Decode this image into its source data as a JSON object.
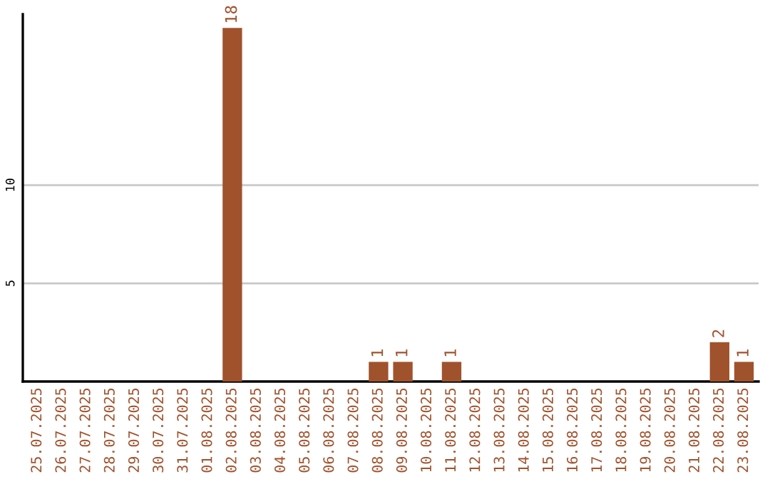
{
  "chart_data": {
    "type": "bar",
    "categories": [
      "25.07.2025",
      "26.07.2025",
      "27.07.2025",
      "28.07.2025",
      "29.07.2025",
      "30.07.2025",
      "31.07.2025",
      "01.08.2025",
      "02.08.2025",
      "03.08.2025",
      "04.08.2025",
      "05.08.2025",
      "06.08.2025",
      "07.08.2025",
      "08.08.2025",
      "09.08.2025",
      "10.08.2025",
      "11.08.2025",
      "12.08.2025",
      "13.08.2025",
      "14.08.2025",
      "15.08.2025",
      "16.08.2025",
      "17.08.2025",
      "18.08.2025",
      "19.08.2025",
      "20.08.2025",
      "21.08.2025",
      "22.08.2025",
      "23.08.2025"
    ],
    "values": [
      0,
      0,
      0,
      0,
      0,
      0,
      0,
      0,
      18,
      0,
      0,
      0,
      0,
      0,
      1,
      1,
      0,
      1,
      0,
      0,
      0,
      0,
      0,
      0,
      0,
      0,
      0,
      0,
      2,
      1
    ],
    "value_labels": [
      null,
      null,
      null,
      null,
      null,
      null,
      null,
      null,
      "18",
      null,
      null,
      null,
      null,
      null,
      "1",
      "1",
      null,
      "1",
      null,
      null,
      null,
      null,
      null,
      null,
      null,
      null,
      null,
      null,
      "2",
      "1"
    ],
    "color": "#a0522d",
    "ylim": [
      0,
      18.7
    ],
    "yticks": [
      5,
      10
    ],
    "grid": "y"
  }
}
